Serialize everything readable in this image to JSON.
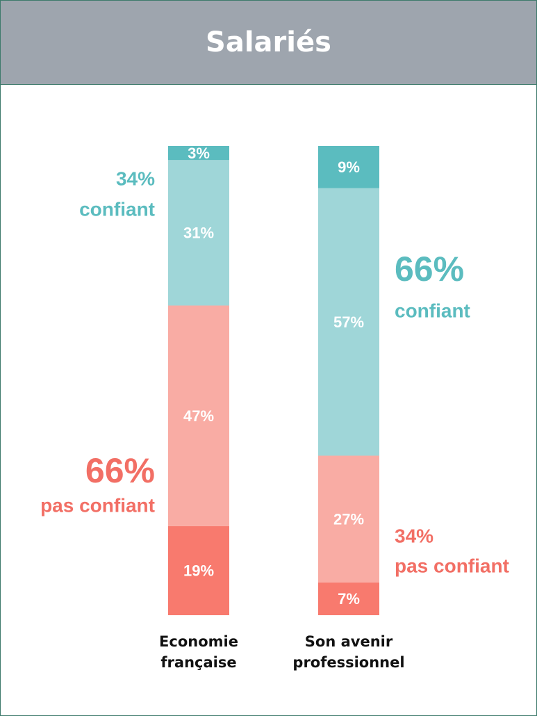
{
  "chart_data": {
    "type": "stacked_bar",
    "title": "Salariés",
    "categories": [
      "Economie française",
      "Son avenir professionnel"
    ],
    "ylim": [
      0,
      100
    ],
    "series": [
      {
        "color": "#f87a6e",
        "values": [
          19,
          7
        ],
        "value_labels": [
          "19%",
          "7%"
        ]
      },
      {
        "color": "#f9aca4",
        "values": [
          47,
          27
        ],
        "value_labels": [
          "47%",
          "27%"
        ]
      },
      {
        "color": "#9fd6d8",
        "values": [
          31,
          57
        ],
        "value_labels": [
          "31%",
          "57%"
        ]
      },
      {
        "color": "#5bbcbf",
        "values": [
          3,
          9
        ],
        "value_labels": [
          "3%",
          "9%"
        ]
      }
    ],
    "annotations": [
      {
        "text": "34%",
        "label": "confiant",
        "color": "#5bbcbf"
      },
      {
        "text": "66%",
        "label": "pas confiant",
        "color": "#f26f65"
      },
      {
        "text": "66%",
        "label": "confiant",
        "color": "#5bbcbf"
      },
      {
        "text": "34%",
        "label": "pas confiant",
        "color": "#f26f65"
      }
    ]
  }
}
